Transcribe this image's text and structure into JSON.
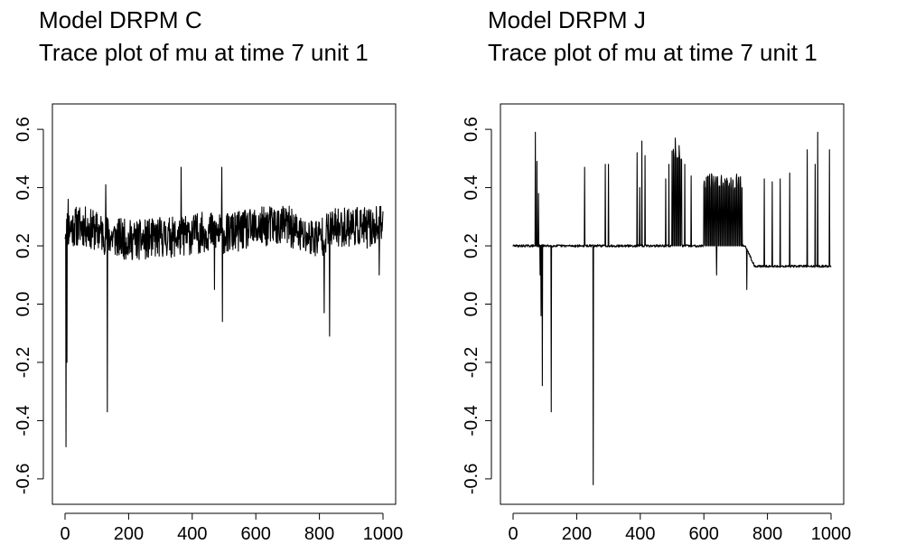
{
  "chart_data": [
    {
      "type": "line",
      "title": "Model DRPM C",
      "subtitle": "Trace plot of mu at time 7 unit 1",
      "xlabel": "",
      "ylabel": "",
      "xlim": [
        0,
        1000
      ],
      "ylim": [
        -0.65,
        0.65
      ],
      "x_ticks": [
        "0",
        "200",
        "400",
        "600",
        "800",
        "1000"
      ],
      "y_ticks": [
        "-0.6",
        "-0.4",
        "-0.2",
        "0.0",
        "0.2",
        "0.4",
        "0.6"
      ],
      "grid": false,
      "trace": {
        "base_level": 0.25,
        "noise_amplitude": 0.07,
        "segments": [
          {
            "x": [
              0,
              50,
              100,
              150,
              200,
              250,
              300,
              350,
              400,
              450,
              500,
              550,
              600,
              650,
              700,
              750,
              800,
              850,
              900,
              950,
              1000
            ],
            "y": [
              0.26,
              0.27,
              0.25,
              0.23,
              0.22,
              0.22,
              0.23,
              0.23,
              0.24,
              0.25,
              0.24,
              0.25,
              0.26,
              0.27,
              0.27,
              0.23,
              0.23,
              0.26,
              0.27,
              0.26,
              0.27
            ]
          }
        ],
        "spikes": [
          {
            "x": 3,
            "y": -0.49
          },
          {
            "x": 6,
            "y": -0.2
          },
          {
            "x": 10,
            "y": 0.36
          },
          {
            "x": 128,
            "y": 0.41
          },
          {
            "x": 133,
            "y": -0.37
          },
          {
            "x": 365,
            "y": 0.47
          },
          {
            "x": 470,
            "y": 0.05
          },
          {
            "x": 493,
            "y": 0.47
          },
          {
            "x": 495,
            "y": -0.06
          },
          {
            "x": 815,
            "y": -0.03
          },
          {
            "x": 832,
            "y": -0.11
          },
          {
            "x": 988,
            "y": 0.1
          }
        ]
      }
    },
    {
      "type": "line",
      "title": "Model DRPM J",
      "subtitle": "Trace plot of mu at time 7 unit 1",
      "xlabel": "",
      "ylabel": "",
      "xlim": [
        0,
        1000
      ],
      "ylim": [
        -0.65,
        0.65
      ],
      "x_ticks": [
        "0",
        "200",
        "400",
        "600",
        "800",
        "1000"
      ],
      "y_ticks": [
        "-0.6",
        "-0.4",
        "-0.2",
        "0.0",
        "0.2",
        "0.4",
        "0.6"
      ],
      "grid": false,
      "trace": {
        "base_level": 0.2,
        "noise_amplitude": 0.004,
        "segments": [
          {
            "x": [
              0,
              730
            ],
            "y": [
              0.2,
              0.2
            ]
          },
          {
            "x": [
              760,
              1000
            ],
            "y": [
              0.13,
              0.13
            ]
          }
        ],
        "plateaus": [
          {
            "from": 500,
            "to": 530,
            "y": 0.52
          },
          {
            "from": 600,
            "to": 720,
            "y": 0.42
          }
        ],
        "spikes": [
          {
            "x": 70,
            "y": 0.59
          },
          {
            "x": 75,
            "y": 0.49
          },
          {
            "x": 80,
            "y": 0.38
          },
          {
            "x": 85,
            "y": 0.1
          },
          {
            "x": 88,
            "y": -0.04
          },
          {
            "x": 92,
            "y": -0.28
          },
          {
            "x": 120,
            "y": -0.37
          },
          {
            "x": 225,
            "y": 0.47
          },
          {
            "x": 252,
            "y": -0.62
          },
          {
            "x": 290,
            "y": 0.48
          },
          {
            "x": 300,
            "y": 0.48
          },
          {
            "x": 390,
            "y": 0.52
          },
          {
            "x": 398,
            "y": 0.4
          },
          {
            "x": 405,
            "y": 0.56
          },
          {
            "x": 415,
            "y": 0.51
          },
          {
            "x": 480,
            "y": 0.43
          },
          {
            "x": 490,
            "y": 0.48
          },
          {
            "x": 510,
            "y": 0.57
          },
          {
            "x": 540,
            "y": 0.48
          },
          {
            "x": 560,
            "y": 0.44
          },
          {
            "x": 640,
            "y": 0.1
          },
          {
            "x": 735,
            "y": 0.05
          },
          {
            "x": 790,
            "y": 0.43
          },
          {
            "x": 815,
            "y": 0.42
          },
          {
            "x": 840,
            "y": 0.43
          },
          {
            "x": 870,
            "y": 0.45
          },
          {
            "x": 925,
            "y": 0.53
          },
          {
            "x": 950,
            "y": 0.48
          },
          {
            "x": 958,
            "y": 0.59
          },
          {
            "x": 995,
            "y": 0.53
          }
        ]
      }
    }
  ]
}
